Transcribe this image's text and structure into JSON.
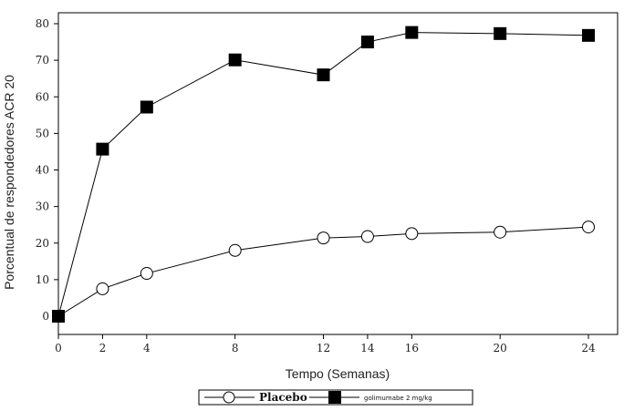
{
  "chart_data": {
    "type": "line",
    "title": "",
    "xlabel": "Tempo (Semanas)",
    "ylabel": "Porcentual de respondedores ACR 20",
    "xlim": [
      0,
      24
    ],
    "ylim": [
      0,
      80
    ],
    "xticks": [
      0,
      2,
      4,
      8,
      12,
      14,
      16,
      20,
      24
    ],
    "yticks": [
      0,
      10,
      20,
      30,
      40,
      50,
      60,
      70,
      80
    ],
    "grid": false,
    "legend_position": "bottom-center",
    "series": [
      {
        "name": "Placebo",
        "marker": "open-circle",
        "color": "#000000",
        "x": [
          0,
          2,
          4,
          8,
          12,
          14,
          16,
          20,
          24
        ],
        "y": [
          0,
          7.5,
          11.7,
          18,
          21.4,
          21.8,
          22.6,
          23,
          24.4
        ]
      },
      {
        "name": "golimumabe 2 mg/kg",
        "marker": "filled-square",
        "color": "#000000",
        "x": [
          0,
          2,
          4,
          8,
          12,
          14,
          16,
          20,
          24
        ],
        "y": [
          0,
          45.7,
          57.2,
          70.1,
          66,
          75,
          77.6,
          77.3,
          76.8
        ]
      }
    ]
  }
}
